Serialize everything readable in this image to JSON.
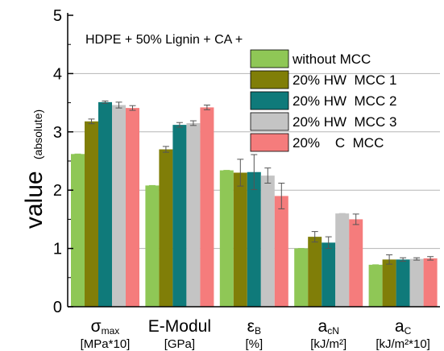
{
  "chart_data": {
    "type": "bar",
    "title": "",
    "annotation": "HDPE + 50% Lignin + CA +",
    "ylabel_main": "value",
    "ylabel_sub": "(absolute)",
    "ylim": [
      0,
      5
    ],
    "yticks": [
      "0",
      "1",
      "2",
      "3",
      "4",
      "5"
    ],
    "grid": "horizontal",
    "legend_position": "top-right",
    "categories": [
      {
        "base": "σ",
        "sub": "max",
        "sup": "",
        "unit": "[MPa*10]"
      },
      {
        "base": "E-Modul",
        "sub": "",
        "sup": "",
        "unit": "[GPa]"
      },
      {
        "base": "ε",
        "sub": "B",
        "sup": "",
        "unit": "[%]"
      },
      {
        "base": "a",
        "sub": "cN",
        "sup": "",
        "unit": "[kJ/m²]"
      },
      {
        "base": "a",
        "sub": "C",
        "sup": "",
        "unit": "[kJ/m²*10]"
      }
    ],
    "series": [
      {
        "name": "without MCC",
        "color": "#8fc756",
        "values": [
          2.62,
          2.08,
          2.34,
          1.0,
          0.72
        ],
        "errors": [
          0.0,
          0.0,
          0.0,
          0.0,
          0.0
        ]
      },
      {
        "name": "20% HW  MCC 1",
        "color": "#807e08",
        "values": [
          3.18,
          2.7,
          2.3,
          1.2,
          0.81
        ],
        "errors": [
          0.04,
          0.05,
          0.23,
          0.09,
          0.08
        ]
      },
      {
        "name": "20% HW  MCC 2",
        "color": "#0f7a7a",
        "values": [
          3.51,
          3.12,
          2.31,
          1.1,
          0.81
        ],
        "errors": [
          0.02,
          0.04,
          0.3,
          0.1,
          0.03
        ]
      },
      {
        "name": "20% HW  MCC 3",
        "color": "#c4c4c4",
        "values": [
          3.46,
          3.15,
          2.25,
          1.6,
          0.82
        ],
        "errors": [
          0.05,
          0.04,
          0.13,
          0.0,
          0.02
        ]
      },
      {
        "name": "20%    C  MCC",
        "color": "#f57c7c",
        "values": [
          3.41,
          3.42,
          1.9,
          1.5,
          0.83
        ],
        "errors": [
          0.04,
          0.04,
          0.22,
          0.09,
          0.03
        ]
      }
    ]
  }
}
